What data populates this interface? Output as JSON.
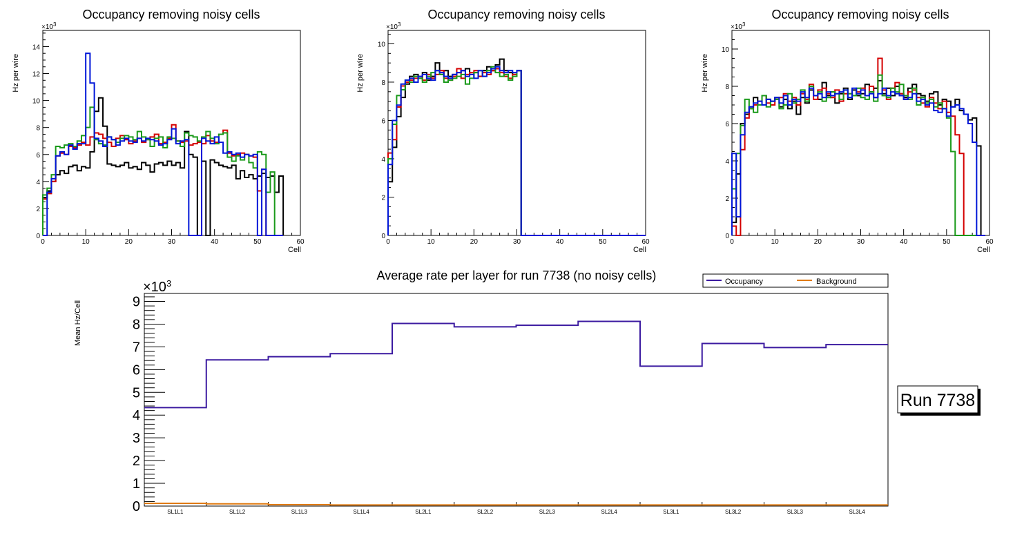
{
  "colors": {
    "black": "#000000",
    "red": "#d40000",
    "green": "#1a9a1a",
    "blue": "#0016d8",
    "occupancy": "#3b1aa0",
    "background": "#e07a10"
  },
  "chart_data": [
    {
      "type": "histogram",
      "title": "Occupancy removing noisy cells",
      "xlabel": "Cell",
      "ylabel": "Hz per wire",
      "exponent": "×10",
      "exponent_power": "3",
      "xlim": [
        0,
        60
      ],
      "ylim": [
        0,
        15.2
      ],
      "xticks": [
        0,
        10,
        20,
        30,
        40,
        50,
        60
      ],
      "yticks": [
        0,
        2,
        4,
        6,
        8,
        10,
        12,
        14
      ],
      "series": [
        {
          "name": "black",
          "values": [
            2.8,
            3.3,
            4.0,
            4.5,
            4.8,
            4.6,
            5.1,
            5.2,
            4.8,
            5.1,
            5.0,
            6.2,
            9.2,
            10.2,
            8.1,
            5.3,
            5.2,
            5.1,
            5.2,
            5.4,
            5.0,
            5.1,
            4.9,
            5.4,
            5.2,
            4.7,
            5.3,
            5.4,
            5.2,
            5.5,
            5.2,
            5.4,
            5.0,
            7.7,
            6.0,
            5.8,
            0.0,
            5.5,
            0.0,
            5.6,
            5.4,
            5.2,
            5.1,
            5.0,
            5.2,
            4.2,
            4.8,
            4.3,
            4.5,
            4.2,
            4.4,
            4.6,
            4.3,
            4.4,
            3.2,
            4.4
          ]
        },
        {
          "name": "red",
          "values": [
            2.7,
            3.1,
            4.0,
            5.9,
            6.1,
            6.0,
            6.6,
            6.5,
            6.7,
            6.9,
            6.7,
            7.3,
            7.6,
            7.5,
            7.2,
            6.9,
            6.6,
            7.2,
            7.4,
            7.1,
            6.8,
            7.0,
            7.2,
            6.9,
            7.1,
            7.3,
            7.5,
            6.8,
            6.9,
            7.2,
            8.2,
            7.0,
            6.9,
            7.0,
            6.7,
            6.8,
            6.9,
            6.8,
            7.4,
            7.0,
            6.9,
            7.5,
            7.8,
            6.1,
            5.9,
            6.0,
            6.1,
            6.0,
            5.9,
            5.8,
            3.3,
            4.9,
            0.0,
            0.0,
            0.0,
            0.0
          ]
        },
        {
          "name": "green",
          "values": [
            3.0,
            3.5,
            4.5,
            6.6,
            6.5,
            6.7,
            6.8,
            6.6,
            7.0,
            7.4,
            8.0,
            9.5,
            7.1,
            6.8,
            6.7,
            7.3,
            7.1,
            6.9,
            7.2,
            7.4,
            7.3,
            7.1,
            7.7,
            7.3,
            7.1,
            6.6,
            7.2,
            7.3,
            6.5,
            7.3,
            7.2,
            7.0,
            6.6,
            7.6,
            7.4,
            7.3,
            7.0,
            7.3,
            7.7,
            7.2,
            6.8,
            7.5,
            7.6,
            5.8,
            5.5,
            5.9,
            5.6,
            6.0,
            5.4,
            5.0,
            6.2,
            6.0,
            3.2,
            4.7,
            0.0,
            0.0
          ]
        },
        {
          "name": "blue",
          "values": [
            0.0,
            3.2,
            4.2,
            5.9,
            6.2,
            6.0,
            6.7,
            6.4,
            6.8,
            6.8,
            13.5,
            11.3,
            7.2,
            7.0,
            6.6,
            7.3,
            7.1,
            6.7,
            7.0,
            7.2,
            7.0,
            6.9,
            7.2,
            7.0,
            7.2,
            7.1,
            7.0,
            6.7,
            6.8,
            7.1,
            7.9,
            6.8,
            7.0,
            7.1,
            0.0,
            0.0,
            0.0,
            7.2,
            7.0,
            6.8,
            7.3,
            6.9,
            6.1,
            6.2,
            6.0,
            6.1,
            5.8,
            6.0,
            5.9,
            6.0,
            0.0,
            4.9,
            0.0,
            0.0,
            0.0,
            0.0
          ]
        }
      ]
    },
    {
      "type": "histogram",
      "title": "Occupancy removing noisy cells",
      "xlabel": "Cell",
      "ylabel": "Hz per wire",
      "exponent": "×10",
      "exponent_power": "3",
      "xlim": [
        0,
        60
      ],
      "ylim": [
        0,
        10.7
      ],
      "xticks": [
        0,
        10,
        20,
        30,
        40,
        50,
        60
      ],
      "yticks": [
        0,
        2,
        4,
        6,
        8,
        10
      ],
      "series": [
        {
          "name": "black",
          "values": [
            2.8,
            4.6,
            6.2,
            7.2,
            7.9,
            8.3,
            8.4,
            8.2,
            8.5,
            8.1,
            8.3,
            9.0,
            8.4,
            8.6,
            8.3,
            8.4,
            8.5,
            8.6,
            8.7,
            8.4,
            8.5,
            8.3,
            8.6,
            8.8,
            8.6,
            8.9,
            9.2,
            8.6,
            8.5,
            8.4,
            8.6
          ]
        },
        {
          "name": "red",
          "values": [
            4.3,
            5.0,
            6.7,
            7.8,
            8.0,
            8.1,
            8.2,
            8.3,
            8.1,
            8.4,
            8.2,
            8.4,
            8.6,
            8.2,
            8.1,
            8.3,
            8.7,
            8.2,
            8.4,
            8.5,
            8.6,
            8.3,
            8.5,
            8.4,
            8.6,
            8.7,
            8.5,
            8.3,
            8.2,
            8.4,
            8.6
          ]
        },
        {
          "name": "green",
          "values": [
            4.0,
            5.8,
            7.3,
            7.6,
            8.1,
            8.0,
            8.3,
            8.2,
            8.0,
            8.3,
            8.5,
            8.6,
            8.4,
            8.0,
            8.1,
            8.2,
            8.3,
            8.4,
            7.9,
            8.2,
            8.5,
            8.6,
            8.3,
            8.6,
            8.8,
            8.5,
            8.3,
            8.4,
            8.1,
            8.3,
            8.6
          ]
        },
        {
          "name": "blue",
          "values": [
            3.7,
            6.0,
            6.8,
            7.9,
            8.1,
            8.2,
            8.0,
            8.3,
            8.4,
            8.2,
            8.1,
            8.6,
            8.5,
            8.3,
            8.2,
            8.4,
            8.5,
            8.6,
            8.3,
            8.4,
            8.2,
            8.6,
            8.3,
            8.5,
            8.7,
            8.8,
            8.6,
            8.5,
            8.6,
            8.5,
            8.6
          ]
        }
      ]
    },
    {
      "type": "histogram",
      "title": "Occupancy removing noisy cells",
      "xlabel": "Cell",
      "ylabel": "Hz per wire",
      "exponent": "×10",
      "exponent_power": "3",
      "xlim": [
        0,
        60
      ],
      "ylim": [
        0,
        11.0
      ],
      "xticks": [
        0,
        10,
        20,
        30,
        40,
        50,
        60
      ],
      "yticks": [
        0,
        2,
        4,
        6,
        8,
        10
      ],
      "series": [
        {
          "name": "black",
          "values": [
            0.7,
            3.3,
            6.0,
            6.5,
            6.9,
            7.4,
            7.0,
            7.5,
            7.3,
            7.2,
            7.4,
            6.9,
            7.3,
            6.8,
            7.2,
            6.5,
            7.4,
            7.1,
            7.8,
            7.5,
            7.3,
            8.2,
            7.5,
            7.7,
            7.1,
            7.6,
            7.9,
            7.3,
            7.8,
            7.5,
            7.6,
            8.1,
            7.7,
            7.9,
            8.3,
            7.6,
            7.9,
            7.5,
            8.0,
            7.6,
            7.4,
            7.9,
            8.1,
            7.6,
            7.5,
            7.2,
            7.6,
            7.7,
            7.0,
            7.3,
            7.2,
            6.9,
            7.3,
            6.7,
            6.5,
            6.2,
            6.3,
            4.8,
            0.0
          ]
        },
        {
          "name": "red",
          "values": [
            0.5,
            0.0,
            4.6,
            6.3,
            6.8,
            7.0,
            7.2,
            7.5,
            7.1,
            7.0,
            7.3,
            7.4,
            7.6,
            7.2,
            7.4,
            7.0,
            7.6,
            7.3,
            8.1,
            7.3,
            7.8,
            7.9,
            7.6,
            7.4,
            7.8,
            7.2,
            7.6,
            7.6,
            7.5,
            7.7,
            7.9,
            7.5,
            8.0,
            7.4,
            9.5,
            7.8,
            7.3,
            7.9,
            8.2,
            7.6,
            7.3,
            7.7,
            7.8,
            7.4,
            7.1,
            6.9,
            7.4,
            7.1,
            6.8,
            7.2,
            6.6,
            6.4,
            5.4,
            4.4,
            0.0,
            0.0,
            0.0,
            0.0,
            0.0
          ]
        },
        {
          "name": "green",
          "values": [
            2.5,
            4.4,
            5.9,
            7.3,
            6.8,
            6.6,
            7.0,
            7.5,
            6.9,
            7.2,
            7.3,
            6.8,
            7.0,
            7.6,
            7.1,
            7.3,
            7.8,
            7.2,
            8.0,
            7.5,
            7.7,
            7.2,
            7.4,
            7.7,
            7.6,
            7.3,
            7.8,
            7.6,
            7.5,
            7.9,
            7.4,
            7.3,
            7.7,
            7.2,
            8.6,
            7.5,
            7.4,
            7.9,
            7.7,
            8.1,
            7.5,
            7.3,
            7.9,
            7.0,
            7.4,
            7.1,
            7.3,
            6.9,
            7.1,
            6.8,
            6.3,
            4.5,
            0.0,
            0.0,
            0.0,
            0.0,
            0.0,
            0.0,
            0.0
          ]
        },
        {
          "name": "blue",
          "values": [
            4.4,
            1.0,
            5.4,
            6.6,
            6.9,
            7.1,
            7.2,
            7.0,
            7.3,
            7.2,
            7.4,
            7.1,
            7.5,
            7.0,
            7.3,
            7.2,
            7.7,
            7.4,
            7.9,
            7.5,
            7.6,
            7.4,
            7.7,
            7.5,
            7.6,
            7.7,
            7.8,
            7.4,
            7.9,
            7.6,
            7.8,
            7.5,
            7.6,
            7.4,
            7.6,
            7.9,
            7.5,
            7.7,
            7.6,
            7.5,
            7.3,
            7.4,
            7.6,
            7.2,
            7.3,
            7.0,
            7.1,
            6.7,
            6.6,
            6.8,
            6.4,
            6.9,
            7.0,
            6.8,
            6.5,
            6.0,
            5.0,
            0.0,
            0.0
          ]
        }
      ]
    },
    {
      "type": "histogram",
      "title": "Average rate per layer for run 7738 (no noisy cells)",
      "xlabel": "",
      "ylabel": "Mean Hz/Cell",
      "exponent": "×10",
      "exponent_power": "3",
      "ylim": [
        0,
        9.35
      ],
      "yticks": [
        0,
        1,
        2,
        3,
        4,
        5,
        6,
        7,
        8,
        9
      ],
      "categories": [
        "SL1L1",
        "SL1L2",
        "SL1L3",
        "SL1L4",
        "SL2L1",
        "SL2L2",
        "SL2L3",
        "SL2L4",
        "SL3L1",
        "SL3L2",
        "SL3L3",
        "SL3L4"
      ],
      "legend": {
        "position": "top-right",
        "entries": [
          "Occupancy",
          "Background"
        ]
      },
      "series": [
        {
          "name": "Occupancy",
          "values": [
            4.33,
            6.43,
            6.57,
            6.7,
            8.03,
            7.88,
            7.95,
            8.12,
            6.15,
            7.15,
            6.97,
            7.1
          ]
        },
        {
          "name": "Background",
          "values": [
            0.12,
            0.1,
            0.06,
            0.05,
            0.05,
            0.05,
            0.05,
            0.05,
            0.05,
            0.05,
            0.05,
            0.05
          ]
        }
      ]
    }
  ],
  "run_box": "Run 7738"
}
